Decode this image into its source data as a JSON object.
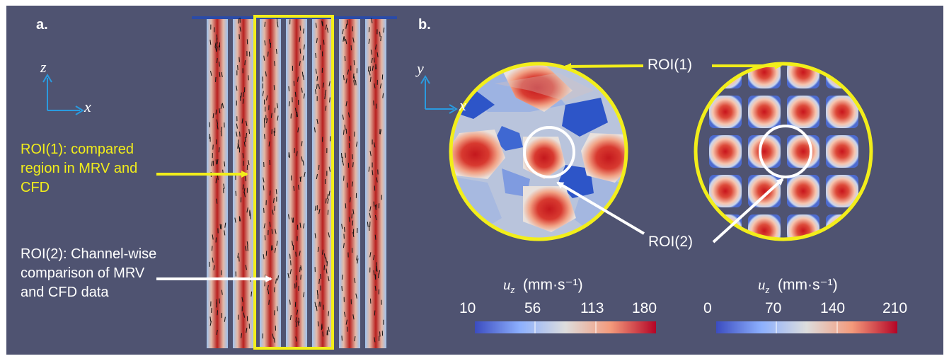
{
  "panels": {
    "a": {
      "label": "a.",
      "axis_vertical": "z",
      "axis_horizontal": "x"
    },
    "b": {
      "label": "b.",
      "axis_vertical": "y",
      "axis_horizontal": "x"
    }
  },
  "annotations": {
    "roi1_text": "ROI(1): compared region in MRV and CFD",
    "roi2_text": "ROI(2): Channel-wise comparison of MRV and CFD data",
    "roi1_label": "ROI(1)",
    "roi2_label": "ROI(2)"
  },
  "colorbars": [
    {
      "quantity": "u",
      "subscript": "z",
      "unit": "(mm·s⁻¹)",
      "ticks": [
        "10",
        "56",
        "113",
        "180"
      ]
    },
    {
      "quantity": "u",
      "subscript": "z",
      "unit": "(mm·s⁻¹)",
      "ticks": [
        "0",
        "70",
        "140",
        "210"
      ]
    }
  ],
  "colors": {
    "background": "#4f5371",
    "highlight": "#f2ee1a",
    "annotation": "#ffffff",
    "axis": "#2a9be0",
    "low": "#3b4cc0",
    "mid": "#dddddd",
    "high": "#b40426"
  }
}
